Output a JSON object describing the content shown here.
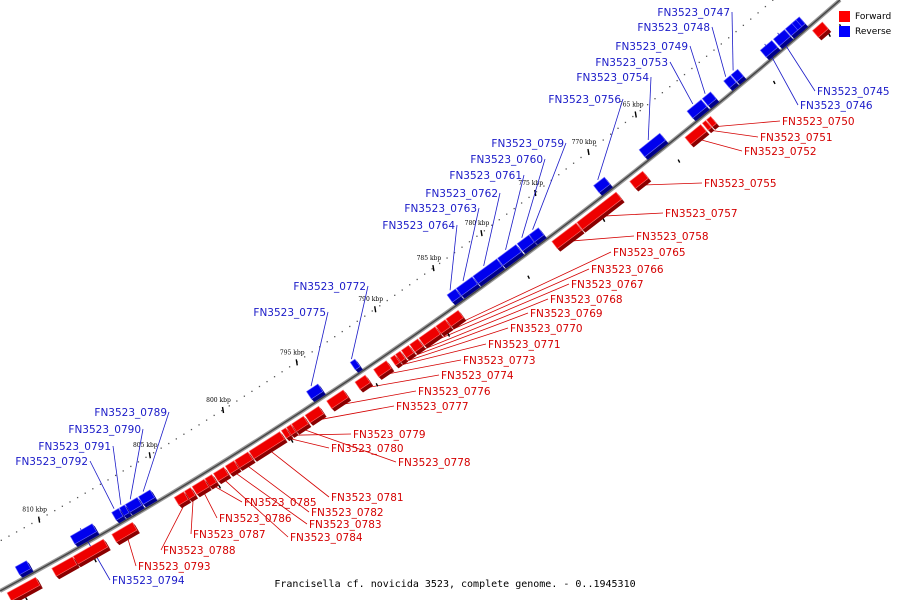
{
  "caption": "Francisella cf. novicida 3523, complete genome. - 0..1945310",
  "legend": [
    {
      "label": "Forward",
      "color": "#ff0000"
    },
    {
      "label": "Reverse",
      "color": "#0000ff"
    }
  ],
  "colors": {
    "forward": "#ff0000",
    "reverse": "#0000ff",
    "backbone": "#888888"
  },
  "ticks": [
    {
      "label": "765 kbp",
      "u": 0.785
    },
    {
      "label": "770 kbp",
      "u": 0.7275
    },
    {
      "label": "775 kbp",
      "u": 0.663
    },
    {
      "label": "780 kbp",
      "u": 0.598
    },
    {
      "label": "785 kbp",
      "u": 0.54
    },
    {
      "label": "790 kbp",
      "u": 0.47
    },
    {
      "label": "795 kbp",
      "u": 0.376
    },
    {
      "label": "800 kbp",
      "u": 0.288
    },
    {
      "label": "805 kbp",
      "u": 0.201
    },
    {
      "label": "810 kbp",
      "u": 0.07
    }
  ],
  "genes": [
    {
      "id": "FN3523_0745",
      "strand": "reverse",
      "u0": 0.93,
      "u1": 0.9435
    },
    {
      "id": "FN3523_0746",
      "strand": "reverse",
      "u0": 0.914,
      "u1": 0.928
    },
    {
      "id": "FN3523_0747",
      "strand": "reverse",
      "u0": 0.8785,
      "u1": 0.8865
    },
    {
      "id": "FN3523_0748",
      "strand": "reverse",
      "u0": 0.8695,
      "u1": 0.8775
    },
    {
      "id": "FN3523_0749",
      "strand": "reverse",
      "u0": 0.8435,
      "u1": 0.8535
    },
    {
      "id": "FN3523_0750",
      "strand": "forward",
      "u0": 0.834,
      "u1": 0.839
    },
    {
      "id": "FN3523_0751",
      "strand": "forward",
      "u0": 0.829,
      "u1": 0.833
    },
    {
      "id": "FN3523_0752",
      "strand": "forward",
      "u0": 0.808,
      "u1": 0.827
    },
    {
      "id": "FN3523_0753",
      "strand": "reverse",
      "u0": 0.825,
      "u1": 0.842
    },
    {
      "id": "FN3523_0754",
      "strand": "reverse",
      "u0": 0.767,
      "u1": 0.792
    },
    {
      "id": "FN3523_0755",
      "strand": "forward",
      "u0": 0.7415,
      "u1": 0.757
    },
    {
      "id": "FN3523_0756",
      "strand": "reverse",
      "u0": 0.712,
      "u1": 0.725
    },
    {
      "id": "FN3523_0757",
      "strand": "forward",
      "u0": 0.678,
      "u1": 0.725
    },
    {
      "id": "FN3523_0758",
      "strand": "forward",
      "u0": 0.648,
      "u1": 0.677
    },
    {
      "id": "FN3523_0759",
      "strand": "reverse",
      "u0": 0.6345,
      "u1": 0.6455
    },
    {
      "id": "FN3523_0760",
      "strand": "reverse",
      "u0": 0.62,
      "u1": 0.634
    },
    {
      "id": "FN3523_0761",
      "strand": "reverse",
      "u0": 0.5965,
      "u1": 0.6185
    },
    {
      "id": "FN3523_0762",
      "strand": "reverse",
      "u0": 0.567,
      "u1": 0.5955
    },
    {
      "id": "FN3523_0763",
      "strand": "reverse",
      "u0": 0.547,
      "u1": 0.566
    },
    {
      "id": "FN3523_0764",
      "strand": "reverse",
      "u0": 0.536,
      "u1": 0.546
    },
    {
      "id": "FN3523_0765",
      "strand": "forward",
      "u0": 0.5215,
      "u1": 0.536
    },
    {
      "id": "FN3523_0766",
      "strand": "forward",
      "u0": 0.5095,
      "u1": 0.5205
    },
    {
      "id": "FN3523_0767",
      "strand": "forward",
      "u0": 0.4895,
      "u1": 0.5085
    },
    {
      "id": "FN3523_0768",
      "strand": "forward",
      "u0": 0.4785,
      "u1": 0.488
    },
    {
      "id": "FN3523_0769",
      "strand": "forward",
      "u0": 0.4685,
      "u1": 0.477
    },
    {
      "id": "FN3523_0770",
      "strand": "forward",
      "u0": 0.4615,
      "u1": 0.467
    },
    {
      "id": "FN3523_0771",
      "strand": "forward",
      "u0": 0.4555,
      "u1": 0.4605
    },
    {
      "id": "FN3523_0772",
      "strand": "reverse",
      "u0": 0.4205,
      "u1": 0.426
    },
    {
      "id": "FN3523_0773",
      "strand": "forward",
      "u0": 0.4355,
      "u1": 0.4505
    },
    {
      "id": "FN3523_0774",
      "strand": "forward",
      "u0": 0.4135,
      "u1": 0.4255
    },
    {
      "id": "FN3523_0775",
      "strand": "reverse",
      "u0": 0.3685,
      "u1": 0.382
    },
    {
      "id": "FN3523_0776",
      "strand": "forward",
      "u0": 0.38,
      "u1": 0.3995
    },
    {
      "id": "FN3523_0777",
      "strand": "forward",
      "u0": 0.3545,
      "u1": 0.3705
    },
    {
      "id": "FN3523_0778",
      "strand": "forward",
      "u0": 0.3385,
      "u1": 0.3525
    },
    {
      "id": "FN3523_0779",
      "strand": "forward",
      "u0": 0.3325,
      "u1": 0.3375
    },
    {
      "id": "FN3523_0780",
      "strand": "forward",
      "u0": 0.3265,
      "u1": 0.3315
    },
    {
      "id": "FN3523_0781",
      "strand": "forward",
      "u0": 0.2885,
      "u1": 0.3245
    },
    {
      "id": "FN3523_0782",
      "strand": "forward",
      "u0": 0.2715,
      "u1": 0.287
    },
    {
      "id": "FN3523_0783",
      "strand": "forward",
      "u0": 0.2605,
      "u1": 0.2705
    },
    {
      "id": "FN3523_0784",
      "strand": "forward",
      "u0": 0.2465,
      "u1": 0.2585
    },
    {
      "id": "FN3523_0785",
      "strand": "forward",
      "u0": 0.2365,
      "u1": 0.2445
    },
    {
      "id": "FN3523_0786",
      "strand": "forward",
      "u0": 0.2215,
      "u1": 0.2355
    },
    {
      "id": "FN3523_0787",
      "strand": "forward",
      "u0": 0.2125,
      "u1": 0.2195
    },
    {
      "id": "FN3523_0788",
      "strand": "forward",
      "u0": 0.2005,
      "u1": 0.2115
    },
    {
      "id": "FN3523_0789",
      "strand": "reverse",
      "u0": 0.17,
      "u1": 0.1835
    },
    {
      "id": "FN3523_0790",
      "strand": "reverse",
      "u0": 0.1545,
      "u1": 0.1685
    },
    {
      "id": "FN3523_0791",
      "strand": "reverse",
      "u0": 0.1475,
      "u1": 0.1535
    },
    {
      "id": "FN3523_0792",
      "strand": "reverse",
      "u0": 0.1385,
      "u1": 0.1465
    },
    {
      "id": "FN3523_0793",
      "strand": "forward",
      "u0": 0.1275,
      "u1": 0.1515
    },
    {
      "id": "FN3523_0794",
      "strand": "reverse",
      "u0": 0.09,
      "u1": 0.1155
    }
  ],
  "extra_features": [
    {
      "strand": "forward",
      "u0": 0.0825,
      "u1": 0.1175
    },
    {
      "strand": "forward",
      "u0": 0.0575,
      "u1": 0.0815
    },
    {
      "strand": "reverse",
      "u0": 0.0255,
      "u1": 0.0385
    },
    {
      "strand": "forward",
      "u0": 0.0055,
      "u1": 0.0385
    },
    {
      "strand": "reverse",
      "u0": 0.9445,
      "u1": 0.9615
    },
    {
      "strand": "forward",
      "u0": 0.9625,
      "u1": 0.9745
    },
    {
      "strand": "reverse",
      "u0": 0.9525,
      "u1": 0.9575
    }
  ]
}
